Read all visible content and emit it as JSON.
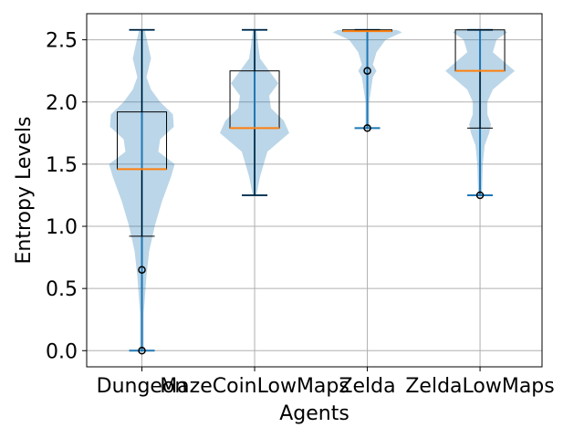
{
  "chart_data": {
    "type": "violin+box",
    "xlabel": "Agents",
    "ylabel": "Entropy Levels",
    "categories": [
      "Dungeon",
      "MazeCoinLowMaps",
      "Zelda",
      "ZeldaLowMaps"
    ],
    "ylim": [
      -0.13,
      2.71
    ],
    "yticks": [
      0.0,
      0.5,
      1.0,
      1.5,
      2.0,
      2.5
    ],
    "ytick_labels": [
      "0.0",
      "0.5",
      "1.0",
      "1.5",
      "2.0",
      "2.5"
    ],
    "grid": true,
    "colors": {
      "violin_fill": "#1f77b4",
      "violin_lines": "#1f77b4",
      "median": "#ff7f0e",
      "box": "#000000",
      "grid": "#b0b0b0"
    },
    "groups": [
      {
        "name": "Dungeon",
        "violin": {
          "min": 0.0,
          "max": 2.58,
          "profile": [
            [
              0.0,
              0.02
            ],
            [
              0.3,
              0.02
            ],
            [
              0.6,
              0.05
            ],
            [
              0.8,
              0.08
            ],
            [
              1.0,
              0.14
            ],
            [
              1.2,
              0.22
            ],
            [
              1.4,
              0.32
            ],
            [
              1.5,
              0.36
            ],
            [
              1.6,
              0.18
            ],
            [
              1.7,
              0.2
            ],
            [
              1.8,
              0.35
            ],
            [
              1.9,
              0.34
            ],
            [
              2.0,
              0.2
            ],
            [
              2.1,
              0.1
            ],
            [
              2.2,
              0.05
            ],
            [
              2.35,
              0.1
            ],
            [
              2.45,
              0.07
            ],
            [
              2.58,
              0.03
            ]
          ]
        },
        "box": {
          "q1": 1.46,
          "median": 1.46,
          "q3": 1.92,
          "whisker_low": 0.92,
          "whisker_high": 2.58
        },
        "outliers": [
          0.65,
          0.0
        ]
      },
      {
        "name": "MazeCoinLowMaps",
        "violin": {
          "min": 1.25,
          "max": 2.58,
          "profile": [
            [
              1.25,
              0.02
            ],
            [
              1.4,
              0.06
            ],
            [
              1.6,
              0.14
            ],
            [
              1.75,
              0.38
            ],
            [
              1.85,
              0.32
            ],
            [
              1.95,
              0.18
            ],
            [
              2.05,
              0.16
            ],
            [
              2.15,
              0.26
            ],
            [
              2.25,
              0.16
            ],
            [
              2.35,
              0.06
            ],
            [
              2.45,
              0.04
            ],
            [
              2.58,
              0.02
            ]
          ]
        },
        "box": {
          "q1": 1.79,
          "median": 1.79,
          "q3": 2.25,
          "whisker_low": 1.25,
          "whisker_high": 2.58
        },
        "outliers": []
      },
      {
        "name": "Zelda",
        "violin": {
          "min": 1.79,
          "max": 2.58,
          "profile": [
            [
              1.79,
              0.02
            ],
            [
              1.9,
              0.02
            ],
            [
              2.0,
              0.02
            ],
            [
              2.1,
              0.04
            ],
            [
              2.2,
              0.06
            ],
            [
              2.25,
              0.1
            ],
            [
              2.3,
              0.06
            ],
            [
              2.4,
              0.1
            ],
            [
              2.5,
              0.2
            ],
            [
              2.56,
              0.38
            ],
            [
              2.58,
              0.32
            ]
          ]
        },
        "box": {
          "q1": 2.57,
          "median": 2.57,
          "q3": 2.58,
          "whisker_low": 2.57,
          "whisker_high": 2.58
        },
        "outliers": [
          2.25,
          1.79
        ]
      },
      {
        "name": "ZeldaLowMaps",
        "violin": {
          "min": 1.25,
          "max": 2.58,
          "profile": [
            [
              1.25,
              0.02
            ],
            [
              1.5,
              0.03
            ],
            [
              1.65,
              0.05
            ],
            [
              1.75,
              0.1
            ],
            [
              1.82,
              0.12
            ],
            [
              1.9,
              0.08
            ],
            [
              2.0,
              0.08
            ],
            [
              2.1,
              0.14
            ],
            [
              2.2,
              0.3
            ],
            [
              2.25,
              0.38
            ],
            [
              2.3,
              0.3
            ],
            [
              2.4,
              0.14
            ],
            [
              2.5,
              0.18
            ],
            [
              2.56,
              0.3
            ],
            [
              2.58,
              0.25
            ]
          ]
        },
        "box": {
          "q1": 2.25,
          "median": 2.25,
          "q3": 2.58,
          "whisker_low": 1.79,
          "whisker_high": 2.58
        },
        "outliers": [
          1.25
        ]
      }
    ]
  }
}
